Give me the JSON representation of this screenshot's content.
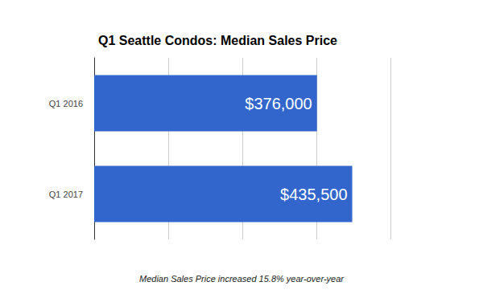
{
  "chart_data": {
    "type": "bar",
    "title": "Q1 Seattle Condos: Median Sales Price",
    "orientation": "horizontal",
    "categories": [
      "Q1 2016",
      "Q1 2017"
    ],
    "values": [
      376000,
      435500
    ],
    "value_labels": [
      "$376,000",
      "$435,500"
    ],
    "data_labels": true,
    "color": "#3366cc",
    "xlim": [
      0,
      500000
    ],
    "xticks": [
      0,
      125000,
      250000,
      375000,
      500000
    ],
    "grid": true,
    "tick_labels": "y",
    "annotation": "Median Sales Price increased 15.8% year-over-year"
  }
}
